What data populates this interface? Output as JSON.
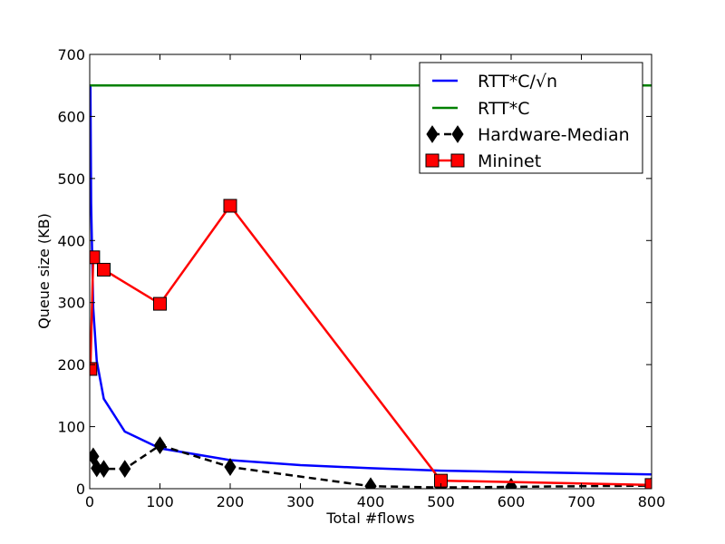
{
  "chart_data": {
    "type": "line",
    "xlabel": "Total #flows",
    "ylabel": "Queue size (KB)",
    "xlim": [
      0,
      800
    ],
    "ylim": [
      0,
      700
    ],
    "xticks": [
      0,
      100,
      200,
      300,
      400,
      500,
      600,
      700,
      800
    ],
    "yticks": [
      0,
      100,
      200,
      300,
      400,
      500,
      600,
      700
    ],
    "grid": false,
    "legend_position": "top-right",
    "series": [
      {
        "name": "RTT*C/√n",
        "color": "#0000ff",
        "style": "solid",
        "marker": "none",
        "x": [
          1,
          2,
          5,
          10,
          20,
          50,
          100,
          200,
          300,
          400,
          500,
          600,
          700,
          800
        ],
        "y": [
          650,
          460,
          291,
          206,
          145,
          92,
          65,
          46,
          38,
          33,
          29,
          27,
          25,
          23
        ]
      },
      {
        "name": "RTT*C",
        "color": "#008000",
        "style": "solid",
        "marker": "none",
        "x": [
          0,
          800
        ],
        "y": [
          650,
          650
        ]
      },
      {
        "name": "Hardware-Median",
        "color": "#000000",
        "style": "dashed",
        "marker": "diamond",
        "x": [
          5,
          10,
          20,
          50,
          100,
          200,
          400,
          500,
          600,
          800
        ],
        "y": [
          52,
          33,
          32,
          32,
          70,
          35,
          4,
          2,
          3,
          5
        ]
      },
      {
        "name": "Mininet",
        "color": "#ff0000",
        "style": "solid",
        "marker": "square",
        "x": [
          1,
          5,
          20,
          100,
          200,
          500,
          800
        ],
        "y": [
          193,
          373,
          353,
          298,
          456,
          13,
          6
        ]
      }
    ]
  }
}
